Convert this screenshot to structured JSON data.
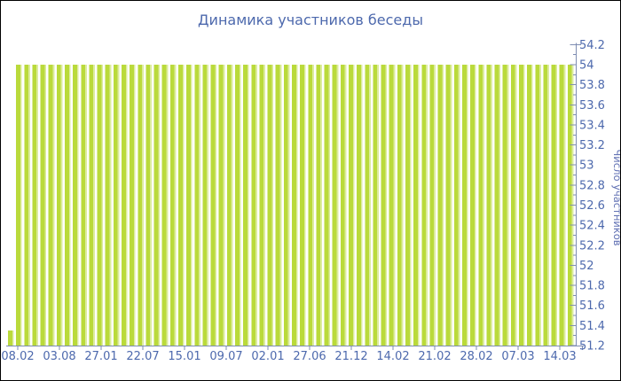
{
  "window": {
    "background": "#ffffff",
    "border_color": "#000000"
  },
  "colors": {
    "title": "#4d69ad",
    "tick_label": "#4d69ad",
    "axis": "#7e8db2",
    "y_axis_title": "#6272b4",
    "bar": "#bada3b",
    "bar_light": "#dcec9e",
    "background": "#ffffff"
  },
  "chart_data": {
    "type": "bar",
    "title": "Динамика участников беседы",
    "xlabel": "",
    "ylabel": "Число участников",
    "ylim": [
      51.2,
      54.2
    ],
    "y_tick_step": 0.2,
    "y_minor_tick_step": 0.1,
    "grid": false,
    "legend": false,
    "y_axis_side": "right",
    "y_tick_labels": [
      "54.2",
      "54",
      "53.8",
      "53.6",
      "53.4",
      "53.2",
      "53",
      "52.8",
      "52.6",
      "52.4",
      "52.2",
      "52",
      "51.8",
      "51.6",
      "51.4",
      "51.2"
    ],
    "x_tick_labels": [
      "08.02",
      "03.08",
      "27.01",
      "22.07",
      "15.01",
      "09.07",
      "02.01",
      "27.06",
      "21.12",
      "14.02",
      "21.02",
      "28.02",
      "07.03",
      "14.03"
    ],
    "values": [
      51.35,
      54,
      54,
      54,
      54,
      54,
      54,
      54,
      54,
      54,
      54,
      54,
      54,
      54,
      54,
      54,
      54,
      54,
      54,
      54,
      54,
      54,
      54,
      54,
      54,
      54,
      54,
      54,
      54,
      54,
      54,
      54,
      54,
      54,
      54,
      54,
      54,
      54,
      54,
      54,
      54,
      54,
      54,
      54,
      54,
      54,
      54,
      54,
      54,
      54,
      54,
      54,
      54,
      54,
      54,
      54,
      54,
      54,
      54,
      54,
      54,
      54,
      54,
      54,
      54,
      54,
      54,
      54,
      54,
      54
    ]
  }
}
